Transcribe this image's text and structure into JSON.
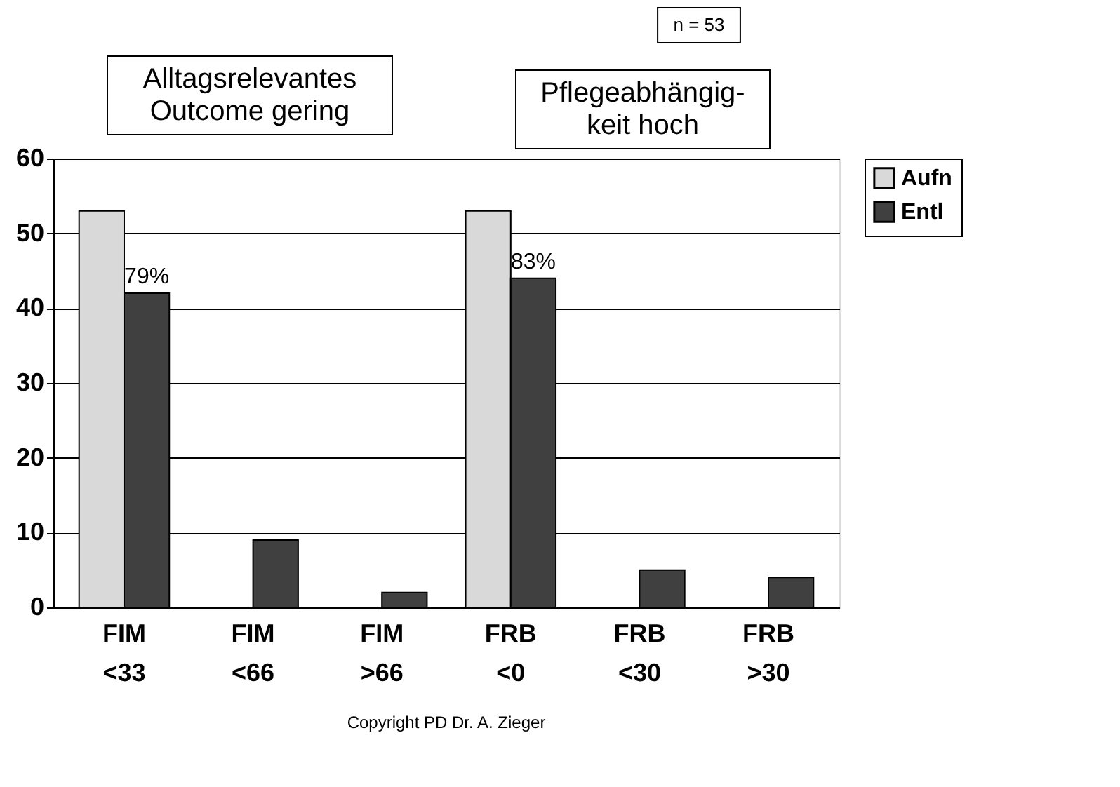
{
  "chart_data": {
    "type": "bar",
    "categories": [
      "FIM <33",
      "FIM <66",
      "FIM >66",
      "FRB <0",
      "FRB <30",
      "FRB >30"
    ],
    "series": [
      {
        "name": "Aufn",
        "color": "#d9d9d9",
        "values": [
          53,
          null,
          null,
          53,
          null,
          null
        ]
      },
      {
        "name": "Entl",
        "color": "#404040",
        "values": [
          42,
          9,
          2,
          44,
          5,
          4
        ]
      }
    ],
    "ylim": [
      0,
      60
    ],
    "yticks": [
      0,
      10,
      20,
      30,
      40,
      50,
      60
    ],
    "grid": "y",
    "legend": "right",
    "annotations": [
      "n = 53",
      "Alltagsrelevantes\nOutcome gering",
      "Pflegeabhängig-\nkeit hoch",
      {
        "text": "79%",
        "x": "FIM <33",
        "y": 42
      },
      {
        "text": "83%",
        "x": "FRB <0",
        "y": 44
      },
      "Copyright PD Dr. A. Zieger"
    ]
  }
}
